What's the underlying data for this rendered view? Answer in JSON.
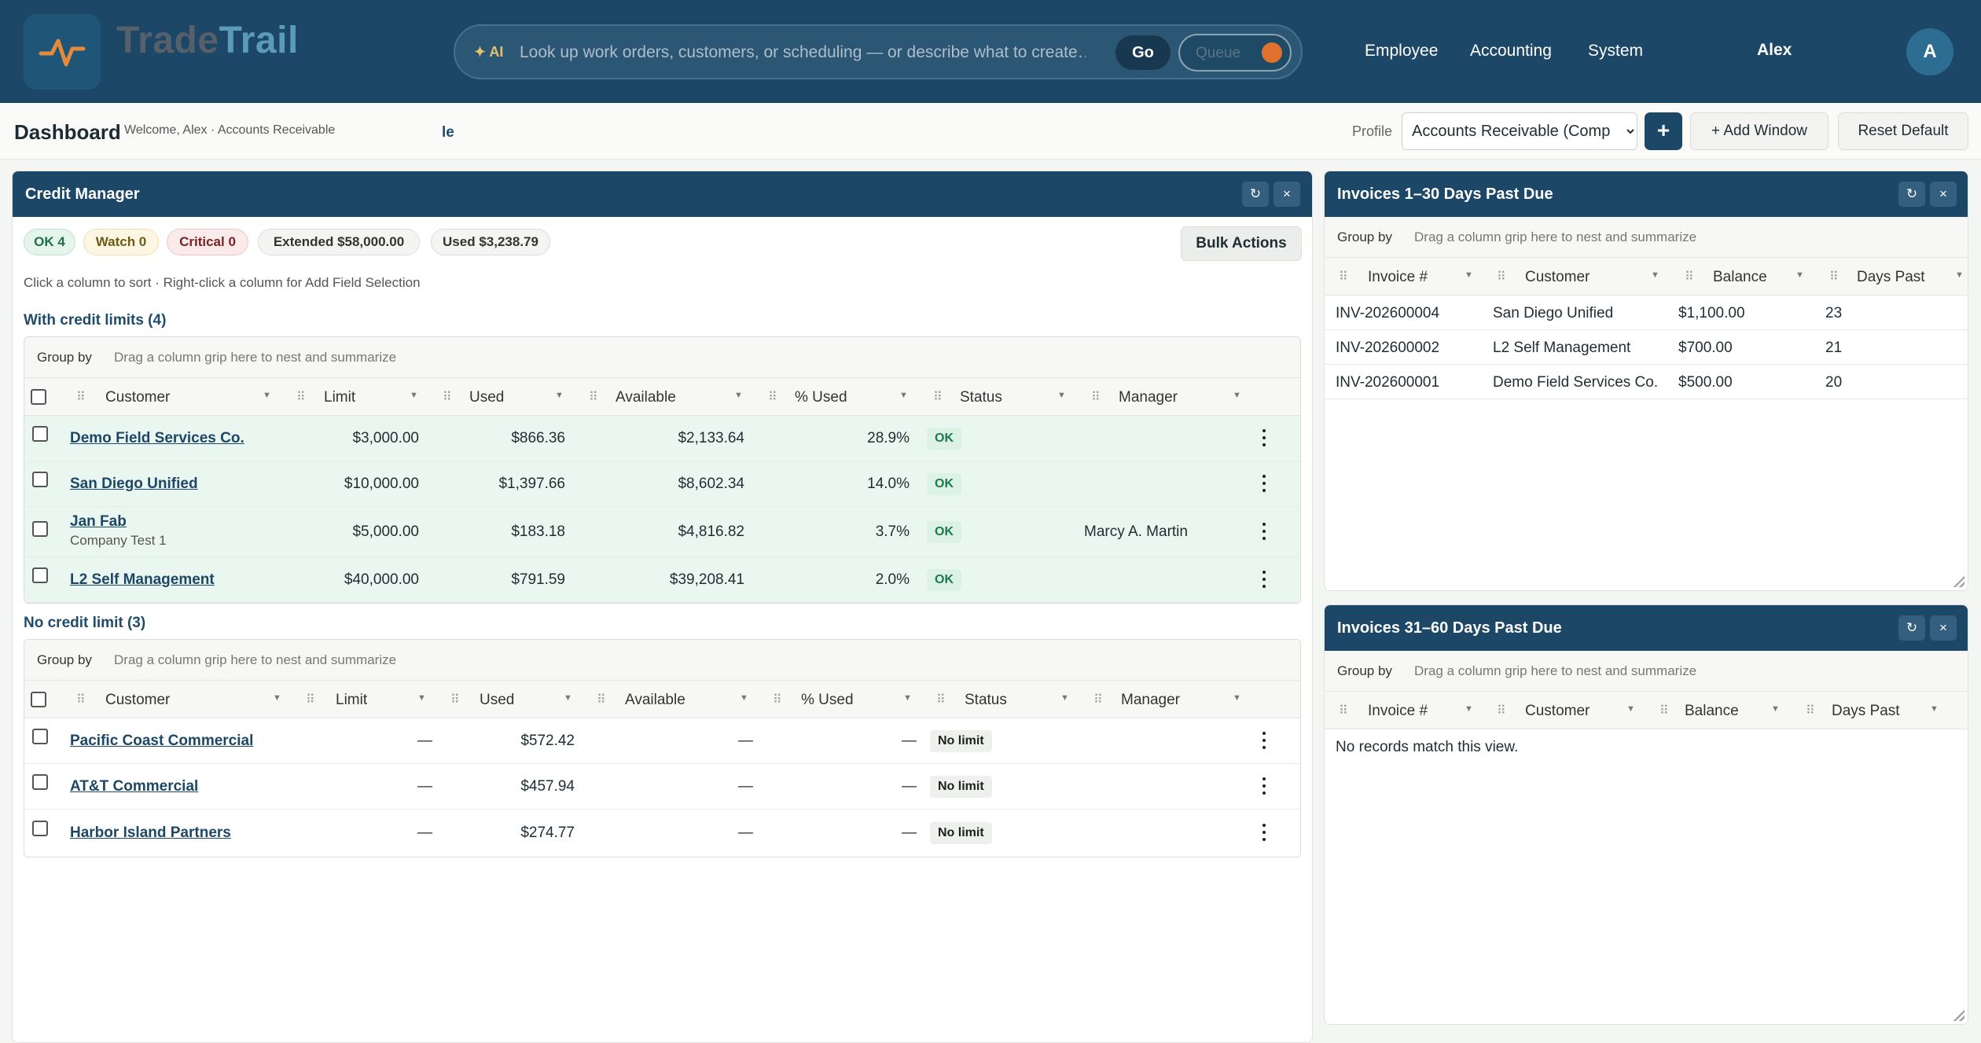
{
  "app": {
    "logo_part1": "Trade",
    "logo_part2": "Trail"
  },
  "search": {
    "ai_label": "✦ AI",
    "placeholder": "Look up work orders, customers, or scheduling — or describe what to create…",
    "go_label": "Go",
    "queue_label": "Queue"
  },
  "nav": {
    "items": [
      "Employee",
      "Accounting",
      "System"
    ],
    "user_name": "Alex",
    "avatar_initial": "A"
  },
  "dashbar": {
    "title": "Dashboard",
    "welcome": "Welcome, Alex · Accounts Receivable",
    "fragment": "le",
    "profile_label": "Profile",
    "profile_value": "Accounts Receivable (Comp",
    "plus_label": "+",
    "add_window_label": "+ Add Window",
    "reset_label": "Reset Default"
  },
  "credit_manager": {
    "title": "Credit Manager",
    "refresh_icon": "↻",
    "close_icon": "×",
    "chips": {
      "ok": "OK 4",
      "watch": "Watch 0",
      "critical": "Critical 0",
      "extended": "Extended $58,000.00",
      "used": "Used $3,238.79"
    },
    "bulk_label": "Bulk Actions",
    "hint": "Click a column to sort · Right-click a column for Add Field Selection",
    "group_by_label": "Group by",
    "group_by_hint": "Drag a column grip here to nest and summarize",
    "columns": [
      "Customer",
      "Limit",
      "Used",
      "Available",
      "% Used",
      "Status",
      "Manager"
    ],
    "with_limits": {
      "title": "With credit limits (4)",
      "rows": [
        {
          "customer": "Demo Field Services Co.",
          "sub": "",
          "limit": "$3,000.00",
          "used": "$866.36",
          "available": "$2,133.64",
          "pct": "28.9%",
          "status": "OK",
          "manager": ""
        },
        {
          "customer": "San Diego Unified",
          "sub": "",
          "limit": "$10,000.00",
          "used": "$1,397.66",
          "available": "$8,602.34",
          "pct": "14.0%",
          "status": "OK",
          "manager": ""
        },
        {
          "customer": "Jan Fab",
          "sub": "Company Test 1",
          "limit": "$5,000.00",
          "used": "$183.18",
          "available": "$4,816.82",
          "pct": "3.7%",
          "status": "OK",
          "manager": "Marcy A. Martin"
        },
        {
          "customer": "L2 Self Management",
          "sub": "",
          "limit": "$40,000.00",
          "used": "$791.59",
          "available": "$39,208.41",
          "pct": "2.0%",
          "status": "OK",
          "manager": ""
        }
      ]
    },
    "no_limit": {
      "title": "No credit limit (3)",
      "rows": [
        {
          "customer": "Pacific Coast Commercial",
          "limit": "—",
          "used": "$572.42",
          "available": "—",
          "pct": "—",
          "status": "No limit"
        },
        {
          "customer": "AT&T Commercial",
          "limit": "—",
          "used": "$457.94",
          "available": "—",
          "pct": "—",
          "status": "No limit"
        },
        {
          "customer": "Harbor Island Partners",
          "limit": "—",
          "used": "$274.77",
          "available": "—",
          "pct": "—",
          "status": "No limit"
        }
      ]
    }
  },
  "invoices_1_30": {
    "title": "Invoices 1–30 Days Past Due",
    "group_by_label": "Group by",
    "group_by_hint": "Drag a column grip here to nest and summarize",
    "columns": [
      "Invoice #",
      "Customer",
      "Balance",
      "Days Past"
    ],
    "rows": [
      {
        "invoice": "INV-202600004",
        "customer": "San Diego Unified",
        "balance": "$1,100.00",
        "days": "23"
      },
      {
        "invoice": "INV-202600002",
        "customer": "L2 Self Management",
        "balance": "$700.00",
        "days": "21"
      },
      {
        "invoice": "INV-202600001",
        "customer": "Demo Field Services Co.",
        "balance": "$500.00",
        "days": "20"
      }
    ]
  },
  "invoices_31_60": {
    "title": "Invoices 31–60 Days Past Due",
    "group_by_label": "Group by",
    "group_by_hint": "Drag a column grip here to nest and summarize",
    "columns": [
      "Invoice #",
      "Customer",
      "Balance",
      "Days Past"
    ],
    "empty": "No records match this view."
  },
  "colors": {
    "header_bg": "#1d4766",
    "ok_row": "#eaf7f0",
    "ok_badge": "#dcf2e5",
    "queue_dot": "#e0712f"
  }
}
